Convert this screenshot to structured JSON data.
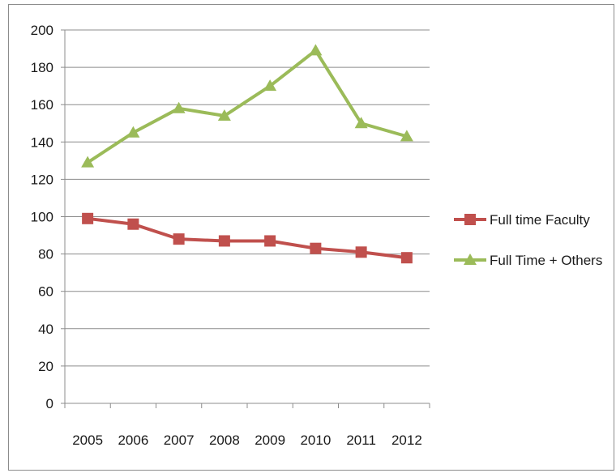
{
  "chart_data": {
    "type": "line",
    "categories": [
      "2005",
      "2006",
      "2007",
      "2008",
      "2009",
      "2010",
      "2011",
      "2012"
    ],
    "series": [
      {
        "name": "Full time Faculty",
        "values": [
          99,
          96,
          88,
          87,
          87,
          83,
          81,
          78
        ],
        "color": "#c0504d",
        "marker": "square"
      },
      {
        "name": "Full Time + Others",
        "values": [
          129,
          145,
          158,
          154,
          170,
          189,
          150,
          143
        ],
        "color": "#9bbb59",
        "marker": "triangle"
      }
    ],
    "ylim": [
      0,
      200
    ],
    "yticks": [
      "0",
      "20",
      "40",
      "60",
      "80",
      "100",
      "120",
      "140",
      "160",
      "180",
      "200"
    ],
    "grid": true,
    "legend_position": "right",
    "gridline_color": "#8c8c8c"
  }
}
